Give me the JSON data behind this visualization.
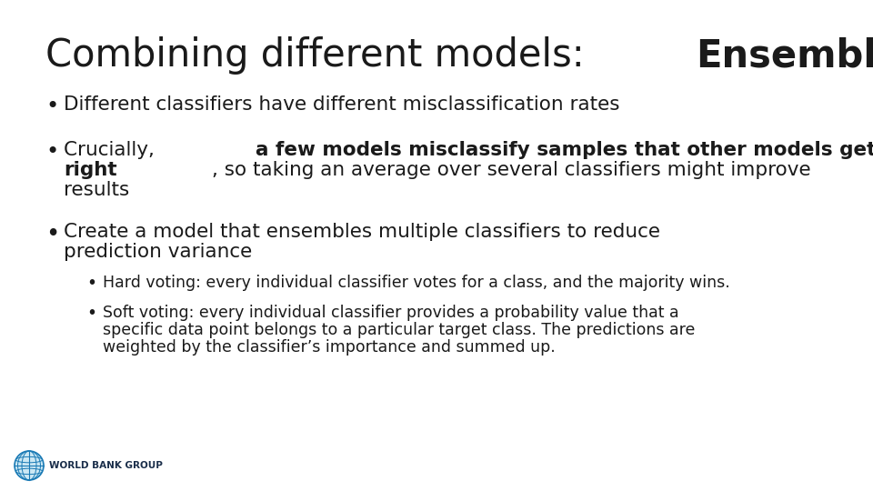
{
  "title_normal": "Combining different models: ",
  "title_bold": "Ensembles",
  "background_color": "#ffffff",
  "text_color": "#1a1a1a",
  "footer_text": "WORLD BANK GROUP",
  "title_fontsize": 30,
  "body_fontsize": 15.5,
  "sub_fontsize": 12.5,
  "footer_color": "#1a2e4a"
}
